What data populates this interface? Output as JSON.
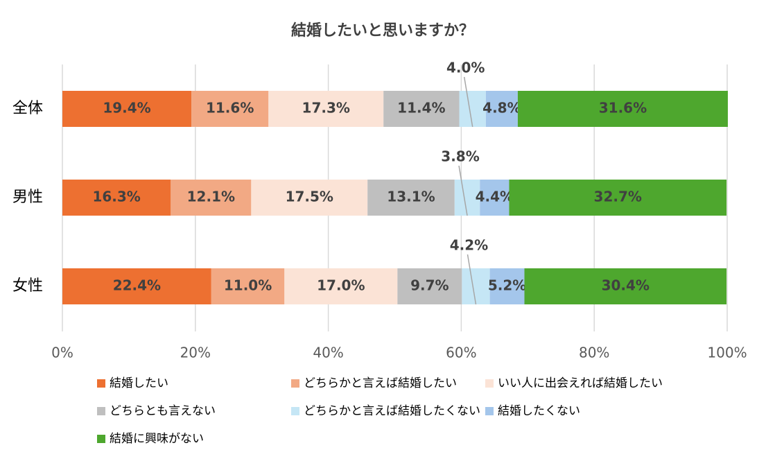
{
  "chart_data": {
    "type": "stacked-bar-horizontal",
    "title": "結婚したいと思いますか？",
    "categories": [
      "全体",
      "男性",
      "女性"
    ],
    "series": [
      {
        "name": "結婚したい",
        "color": "#ed7031",
        "values": [
          19.4,
          16.3,
          22.4
        ],
        "value_labels": [
          "19.4%",
          "16.3%",
          "22.4%"
        ]
      },
      {
        "name": "どちらかと言えば結婚したい",
        "color": "#f2a984",
        "values": [
          11.6,
          12.1,
          11.0
        ],
        "value_labels": [
          "11.6%",
          "12.1%",
          "11.0%"
        ]
      },
      {
        "name": "いい人に出会えれば結婚したい",
        "color": "#fbe3d6",
        "values": [
          17.3,
          17.5,
          17.0
        ],
        "value_labels": [
          "17.3%",
          "17.5%",
          "17.0%"
        ]
      },
      {
        "name": "どちらとも言えない",
        "color": "#bfbfbf",
        "values": [
          11.4,
          13.1,
          9.7
        ],
        "value_labels": [
          "11.4%",
          "13.1%",
          "9.7%"
        ]
      },
      {
        "name": "どちらかと言えば結婚したくない",
        "color": "#c5e6f5",
        "values": [
          4.0,
          3.8,
          4.2
        ],
        "value_labels": [
          "4.0%",
          "3.8%",
          "4.2%"
        ]
      },
      {
        "name": "結婚したくない",
        "color": "#a4c6eb",
        "values": [
          4.8,
          4.4,
          5.2
        ],
        "value_labels": [
          "4.8%",
          "4.4%",
          "5.2%"
        ]
      },
      {
        "name": "結婚に興味がない",
        "color": "#4ea72e",
        "values": [
          31.6,
          32.7,
          30.4
        ],
        "value_labels": [
          "31.6%",
          "32.7%",
          "30.4%"
        ]
      }
    ],
    "xlim": [
      0,
      100
    ],
    "xticks": [
      {
        "value": 0,
        "label": "0%"
      },
      {
        "value": 20,
        "label": "20%"
      },
      {
        "value": 40,
        "label": "40%"
      },
      {
        "value": 60,
        "label": "60%"
      },
      {
        "value": 80,
        "label": "80%"
      },
      {
        "value": 100,
        "label": "100%"
      }
    ],
    "grid": true,
    "legend": "bottom"
  }
}
